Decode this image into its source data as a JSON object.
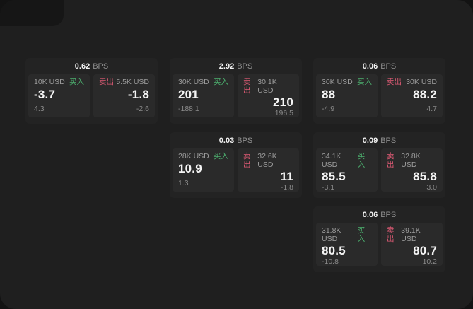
{
  "colors": {
    "page_bg": "#131313",
    "panel_bg": "#1f1f1f",
    "card_bg": "#232323",
    "tile_bg": "#2a2a2a",
    "buy_green": "#4caf6e",
    "sell_red": "#dd5a74"
  },
  "cards": [
    {
      "col": 0,
      "row": 0,
      "bps_value": "0.62",
      "bps_unit": "BPS",
      "buy": {
        "size": "10K USD",
        "side_label": "买入",
        "price": "-3.7",
        "delta": "4.3"
      },
      "sell": {
        "side_label": "卖出",
        "size": "5.5K USD",
        "price": "-1.8",
        "delta": "-2.6"
      }
    },
    {
      "col": 1,
      "row": 0,
      "bps_value": "2.92",
      "bps_unit": "BPS",
      "buy": {
        "size": "30K USD",
        "side_label": "买入",
        "price": "201",
        "delta": "-188.1"
      },
      "sell": {
        "side_label": "卖出",
        "size": "30.1K USD",
        "price": "210",
        "delta": "196.5"
      }
    },
    {
      "col": 2,
      "row": 0,
      "bps_value": "0.06",
      "bps_unit": "BPS",
      "buy": {
        "size": "30K USD",
        "side_label": "买入",
        "price": "88",
        "delta": "-4.9"
      },
      "sell": {
        "side_label": "卖出",
        "size": "30K USD",
        "price": "88.2",
        "delta": "4.7"
      }
    },
    {
      "col": 1,
      "row": 1,
      "bps_value": "0.03",
      "bps_unit": "BPS",
      "buy": {
        "size": "28K USD",
        "side_label": "买入",
        "price": "10.9",
        "delta": "1.3"
      },
      "sell": {
        "side_label": "卖出",
        "size": "32.6K USD",
        "price": "11",
        "delta": "-1.8"
      }
    },
    {
      "col": 2,
      "row": 1,
      "bps_value": "0.09",
      "bps_unit": "BPS",
      "buy": {
        "size": "34.1K USD",
        "side_label": "买入",
        "price": "85.5",
        "delta": "-3.1"
      },
      "sell": {
        "side_label": "卖出",
        "size": "32.8K USD",
        "price": "85.8",
        "delta": "3.0"
      }
    },
    {
      "col": 2,
      "row": 2,
      "bps_value": "0.06",
      "bps_unit": "BPS",
      "buy": {
        "size": "31.8K USD",
        "side_label": "买入",
        "price": "80.5",
        "delta": "-10.8"
      },
      "sell": {
        "side_label": "卖出",
        "size": "39.1K USD",
        "price": "80.7",
        "delta": "10.2"
      }
    }
  ]
}
